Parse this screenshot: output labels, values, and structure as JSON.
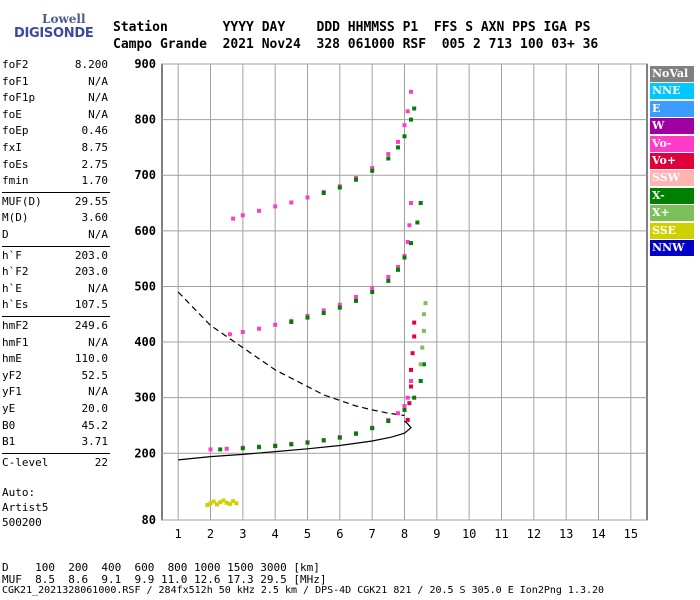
{
  "logo": {
    "line1": "Lowell",
    "line2": "DIGISONDE"
  },
  "header": {
    "labels_row": "Station       YYYY DAY    DDD HHMMSS P1  FFS S AXN PPS IGA PS",
    "values_row": "Campo Grande  2021 Nov24  328 061000 RSF  005 2 713 100 03+ 36"
  },
  "scaled_params": [
    {
      "k": "foF2",
      "v": "8.200"
    },
    {
      "k": "foF1",
      "v": "N/A"
    },
    {
      "k": "foF1p",
      "v": "N/A"
    },
    {
      "k": "foE",
      "v": "N/A"
    },
    {
      "k": "foEp",
      "v": "0.46"
    },
    {
      "k": "fxI",
      "v": "8.75"
    },
    {
      "k": "foEs",
      "v": "2.75"
    },
    {
      "k": "fmin",
      "v": "1.70"
    },
    {
      "k": "MUF(D)",
      "v": "29.55"
    },
    {
      "k": "M(D)",
      "v": "3.60"
    },
    {
      "k": "D",
      "v": "N/A"
    },
    {
      "k": "h`F",
      "v": "203.0"
    },
    {
      "k": "h`F2",
      "v": "203.0"
    },
    {
      "k": "h`E",
      "v": "N/A"
    },
    {
      "k": "h`Es",
      "v": "107.5"
    },
    {
      "k": "hmF2",
      "v": "249.6"
    },
    {
      "k": "hmF1",
      "v": "N/A"
    },
    {
      "k": "hmE",
      "v": "110.0"
    },
    {
      "k": "yF2",
      "v": "52.5"
    },
    {
      "k": "yF1",
      "v": "N/A"
    },
    {
      "k": "yE",
      "v": "20.0"
    },
    {
      "k": "B0",
      "v": "45.2"
    },
    {
      "k": "B1",
      "v": "3.71"
    },
    {
      "k": "C-level",
      "v": "22"
    }
  ],
  "autoscaling": {
    "line1": "Auto:",
    "line2": "Artist5",
    "line3": "500200"
  },
  "legend": [
    {
      "label": "NoVal",
      "color": "#808080"
    },
    {
      "label": "NNE",
      "color": "#00c8ff"
    },
    {
      "label": "E",
      "color": "#3c9cff"
    },
    {
      "label": "W",
      "color": "#a000a0"
    },
    {
      "label": "Vo-",
      "color": "#ff3cc8"
    },
    {
      "label": "Vo+",
      "color": "#e0003c"
    },
    {
      "label": "SSW",
      "color": "#ffb4b4"
    },
    {
      "label": "X-",
      "color": "#008000"
    },
    {
      "label": "X+",
      "color": "#7cc05a"
    },
    {
      "label": "SSE",
      "color": "#d0d000"
    },
    {
      "label": "NNW",
      "color": "#0000c8"
    }
  ],
  "muf_table": {
    "row1": "D    100  200  400  600  800 1000 1500 3000 [km]",
    "row2": "MUF  8.5  8.6  9.1  9.9 11.0 12.6 17.3 29.5 [MHz]"
  },
  "footer": "CGK21_2021328061000.RSF / 284fx512h 50 kHz 2.5 km / DPS-4D CGK21 821 / 20.5 S 305.0 E Ion2Png 1.3.20",
  "chart_data": {
    "type": "scatter",
    "xlim": [
      0.5,
      15.5
    ],
    "ylim": [
      80,
      900
    ],
    "x_ticks": [
      1,
      2,
      3,
      4,
      5,
      6,
      7,
      8,
      9,
      10,
      11,
      12,
      13,
      14,
      15
    ],
    "y_ticks": [
      80,
      200,
      300,
      400,
      500,
      600,
      700,
      800,
      900
    ],
    "grid": true,
    "series": [
      {
        "name": "Vo-",
        "color": "#ff3cc8",
        "x": [
          2.0,
          2.5,
          3.0,
          3.5,
          4.0,
          4.5,
          5.0,
          5.5,
          6.0,
          6.5,
          7.0,
          7.5,
          7.8,
          8.0,
          8.1,
          8.2
        ],
        "y": [
          207,
          208,
          210,
          212,
          214,
          217,
          220,
          224,
          229,
          236,
          246,
          260,
          272,
          285,
          300,
          330
        ]
      },
      {
        "name": "X-",
        "color": "#008000",
        "x": [
          2.3,
          3.0,
          3.5,
          4.0,
          4.5,
          5.0,
          5.5,
          6.0,
          6.5,
          7.0,
          7.5,
          8.0,
          8.3,
          8.5,
          8.6
        ],
        "y": [
          207,
          209,
          211,
          213,
          216,
          219,
          223,
          228,
          235,
          245,
          258,
          278,
          300,
          330,
          360
        ]
      },
      {
        "name": "Vo- (2F)",
        "color": "#ff3cc8",
        "x": [
          2.6,
          3.0,
          3.5,
          4.0,
          4.5,
          5.0,
          5.5,
          6.0,
          6.5,
          7.0,
          7.5,
          7.8,
          8.0,
          8.1,
          8.15,
          8.2
        ],
        "y": [
          414,
          418,
          424,
          431,
          438,
          447,
          457,
          467,
          481,
          497,
          517,
          535,
          555,
          580,
          610,
          650
        ]
      },
      {
        "name": "X- (2F)",
        "color": "#008000",
        "x": [
          4.5,
          5.0,
          5.5,
          6.0,
          6.5,
          7.0,
          7.5,
          7.8,
          8.0,
          8.2,
          8.4,
          8.5
        ],
        "y": [
          436,
          444,
          452,
          462,
          474,
          490,
          510,
          530,
          552,
          578,
          615,
          650
        ]
      },
      {
        "name": "Vo- (3F)",
        "color": "#ff3cc8",
        "x": [
          2.7,
          3.0,
          3.5,
          4.0,
          4.5,
          5.0,
          5.5,
          6.0,
          6.5,
          7.0,
          7.5,
          7.8,
          8.0,
          8.1,
          8.2
        ],
        "y": [
          622,
          628,
          636,
          644,
          651,
          660,
          670,
          680,
          695,
          713,
          738,
          760,
          790,
          815,
          850
        ]
      },
      {
        "name": "X- (3F)",
        "color": "#008000",
        "x": [
          5.5,
          6.0,
          6.5,
          7.0,
          7.5,
          7.8,
          8.0,
          8.2,
          8.3
        ],
        "y": [
          668,
          678,
          692,
          708,
          730,
          750,
          770,
          800,
          820
        ]
      },
      {
        "name": "Vo+",
        "color": "#e0003c",
        "x": [
          8.1,
          8.15,
          8.2,
          8.2,
          8.25,
          8.3,
          8.3
        ],
        "y": [
          260,
          290,
          320,
          350,
          380,
          410,
          435
        ]
      },
      {
        "name": "Es",
        "color": "#d0d000",
        "x": [
          1.9,
          2.0,
          2.1,
          2.2,
          2.3,
          2.4,
          2.5,
          2.6,
          2.7,
          2.8
        ],
        "y": [
          107,
          110,
          113,
          108,
          112,
          115,
          111,
          109,
          114,
          110
        ]
      },
      {
        "name": "X+",
        "color": "#7cc05a",
        "x": [
          8.5,
          8.55,
          8.6,
          8.6,
          8.65
        ],
        "y": [
          360,
          390,
          420,
          450,
          470
        ]
      }
    ],
    "curves": [
      {
        "name": "profile",
        "style": "solid",
        "x": [
          1.0,
          2.0,
          3.0,
          4.0,
          5.0,
          6.0,
          7.0,
          7.6,
          8.0,
          8.2,
          8.1,
          8.0
        ],
        "y": [
          188,
          194,
          198,
          203,
          208,
          214,
          222,
          229,
          236,
          246,
          253,
          258
        ]
      },
      {
        "name": "muf-curve",
        "style": "dashed",
        "x": [
          1.0,
          1.5,
          2.0,
          2.5,
          3.0,
          3.5,
          4.0,
          4.5,
          5.0,
          5.5,
          6.0,
          6.5,
          7.0,
          7.5,
          8.0
        ],
        "y": [
          490,
          460,
          430,
          410,
          390,
          370,
          350,
          335,
          320,
          305,
          295,
          285,
          278,
          272,
          268
        ]
      }
    ]
  }
}
